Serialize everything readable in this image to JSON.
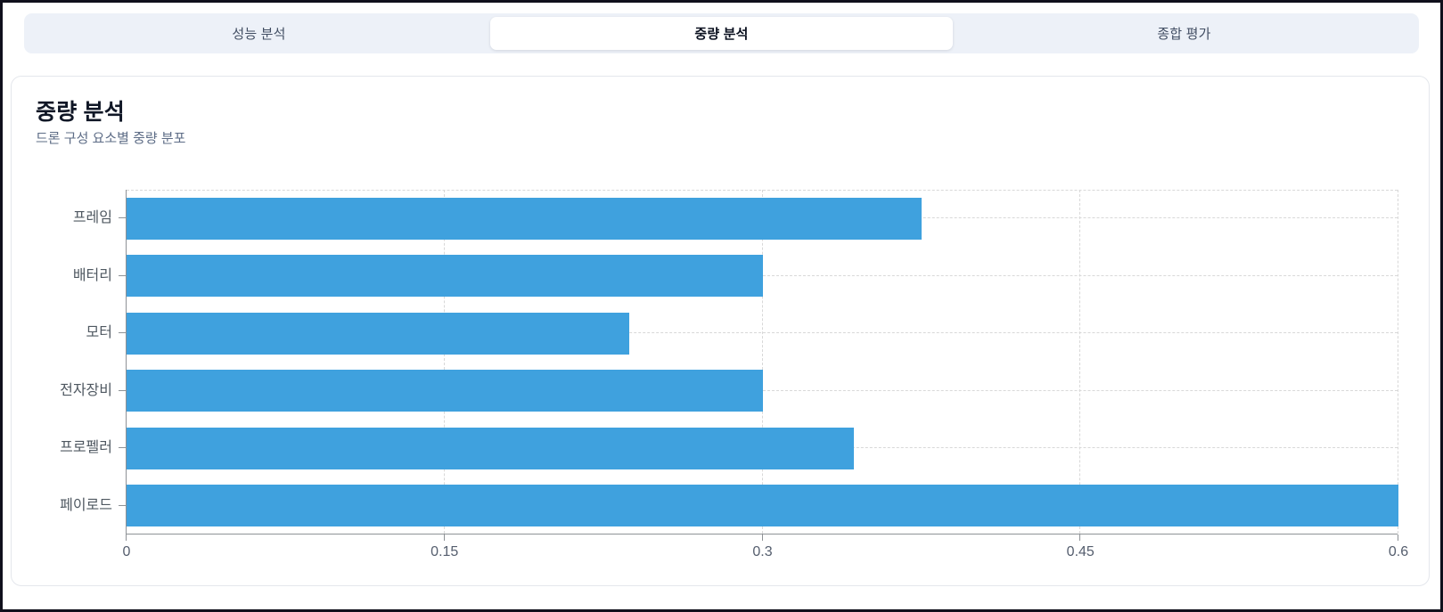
{
  "tabs": [
    {
      "label": "성능 분석",
      "active": false
    },
    {
      "label": "중량 분석",
      "active": true
    },
    {
      "label": "종합 평가",
      "active": false
    }
  ],
  "card": {
    "title": "중량 분석",
    "subtitle": "드론 구성 요소별 중량 분포"
  },
  "chart_data": {
    "type": "bar",
    "orientation": "horizontal",
    "title": "중량 분석",
    "subtitle": "드론 구성 요소별 중량 분포",
    "categories": [
      "프레임",
      "배터리",
      "모터",
      "전자장비",
      "프로펠러",
      "페이로드"
    ],
    "values": [
      0.375,
      0.3,
      0.237,
      0.3,
      0.343,
      0.6
    ],
    "x_ticks": [
      0,
      0.15,
      0.3,
      0.45,
      0.6
    ],
    "xlim": [
      0,
      0.6
    ],
    "xlabel": "",
    "ylabel": "",
    "grid": "dashed",
    "legend": false,
    "bar_color": "#3FA1DE"
  },
  "colors": {
    "tabbar_bg": "#EDF1F8",
    "active_tab_bg": "#FFFFFF",
    "bar": "#3FA1DE",
    "axis": "#8E9296",
    "gridline": "#D8D8D8",
    "tick_text": "#555E6E",
    "title_text": "#101726",
    "subtitle_text": "#5D6C86",
    "frame_border": "#10101C"
  }
}
